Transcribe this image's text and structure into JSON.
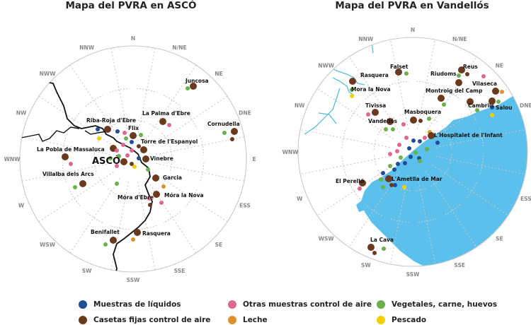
{
  "titles": {
    "asco": "Mapa del PVRA en ASCÓ",
    "vandellos": "Mapa del PVRA en Vandellós"
  },
  "sectors": [
    "N",
    "N/NE",
    "NE",
    "DNE",
    "E",
    "ESS",
    "SE",
    "SSE",
    "SSW",
    "SW",
    "WSW",
    "W",
    "WNW",
    "NW",
    "NWW",
    "NNW"
  ],
  "asco_labels": {
    "center": "ASCÓ",
    "places": [
      "Juncosa",
      "La Palma d'Ebre",
      "Cornudella",
      "Riba-Roja d'Ebre",
      "Flix",
      "Torre de l'Espanyol",
      "La Pobla de Massaluca",
      "Vinebre",
      "Villalba dels Arcs",
      "Garcia",
      "Móra d'Ebre",
      "Móra la Nova",
      "Benifallet",
      "Rasquera"
    ]
  },
  "vandellos_labels": {
    "places": [
      "Falset",
      "Reus",
      "Riudoms",
      "Vilaseca",
      "Rasquera",
      "Mora la Nova",
      "Montroig del Camp",
      "Cambrils",
      "Salou",
      "Tivissa",
      "Masboquera",
      "Vandellós",
      "L'Hospitalet de l'Infant",
      "El Perelló",
      "L'Ametlla de Mar",
      "La Cava"
    ]
  },
  "legend": [
    {
      "label": "Muestras de líquidos",
      "color": "#1f4e96"
    },
    {
      "label": "Otras muestras control de aire",
      "color": "#e0668f"
    },
    {
      "label": "Vegetales, carne, huevos",
      "color": "#6ab04c"
    },
    {
      "label": "Casetas fijas control de aire",
      "color": "#6b3a1e"
    },
    {
      "label": "Leche",
      "color": "#e0922a"
    },
    {
      "label": "Pescado",
      "color": "#f2d000"
    }
  ],
  "colors": {
    "sea": "#5bc0eb",
    "river": "#4ab7e0",
    "grid": "#c8c8c8",
    "border": "#111111"
  }
}
